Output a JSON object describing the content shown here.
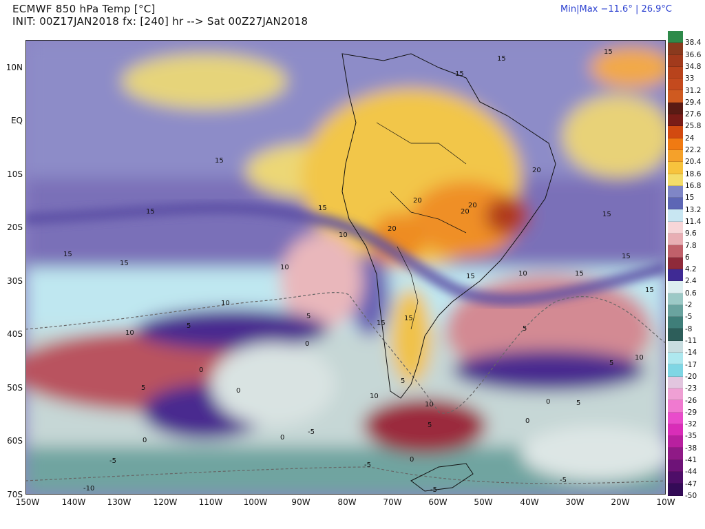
{
  "header": {
    "title_line1": "ECMWF 850 hPa Temp [°C]",
    "title_line2": "INIT: 00Z17JAN2018 fx: [240] hr --> Sat 00Z27JAN2018",
    "minmax": "Min|Max −11.6° | 26.9°C"
  },
  "axes": {
    "lat_labels": [
      "10N",
      "EQ",
      "10S",
      "20S",
      "30S",
      "40S",
      "50S",
      "60S",
      "70S"
    ],
    "lon_labels": [
      "150W",
      "140W",
      "130W",
      "120W",
      "110W",
      "100W",
      "90W",
      "80W",
      "70W",
      "60W",
      "50W",
      "40W",
      "30W",
      "20W",
      "10W"
    ]
  },
  "colorbar": {
    "labels": [
      "38.4",
      "36.6",
      "34.8",
      "33",
      "31.2",
      "29.4",
      "27.6",
      "25.8",
      "24",
      "22.2",
      "20.4",
      "18.6",
      "16.8",
      "15",
      "13.2",
      "11.4",
      "9.6",
      "7.8",
      "6",
      "4.2",
      "2.4",
      "0.6",
      "-2",
      "-5",
      "-8",
      "-11",
      "-14",
      "-17",
      "-20",
      "-23",
      "-26",
      "-29",
      "-32",
      "-35",
      "-38",
      "-41",
      "-44",
      "-47",
      "-50"
    ],
    "colors": [
      "#2e8a4a",
      "#8a3a1e",
      "#a23a1c",
      "#b8431c",
      "#c44a1e",
      "#cf5a20",
      "#5a1b14",
      "#7a1c17",
      "#d24a10",
      "#f07a12",
      "#f5a12a",
      "#f7c33d",
      "#f3dc6a",
      "#7f86c6",
      "#5d66b5",
      "#c8e6f2",
      "#f7d6d8",
      "#e8aeb4",
      "#c0606a",
      "#8f2a3a",
      "#3f2a94",
      "#ddeef0",
      "#9cc9c6",
      "#6aa39f",
      "#3f7e79",
      "#2d5e5a",
      "#c8dde0",
      "#aee8ef",
      "#7fd6e4",
      "#e2c6df",
      "#efa0d4",
      "#f07ad0",
      "#e94ccb",
      "#d92db8",
      "#b8209f",
      "#8f1a86",
      "#6e1378",
      "#4e0e68",
      "#340b57"
    ]
  },
  "contour_labels": {
    "items": [
      "15",
      "15",
      "15",
      "15",
      "15",
      "15",
      "15",
      "15",
      "15",
      "15",
      "15",
      "15",
      "15",
      "15",
      "15",
      "10",
      "10",
      "10",
      "10",
      "10",
      "10",
      "10",
      "10",
      "20",
      "20",
      "20",
      "20",
      "20",
      "5",
      "5",
      "5",
      "5",
      "5",
      "5",
      "5",
      "5",
      "-5",
      "-5",
      "-5",
      "-5",
      "-5",
      "-10",
      "0",
      "0",
      "0",
      "0",
      "0",
      "0",
      "0",
      "0"
    ]
  }
}
